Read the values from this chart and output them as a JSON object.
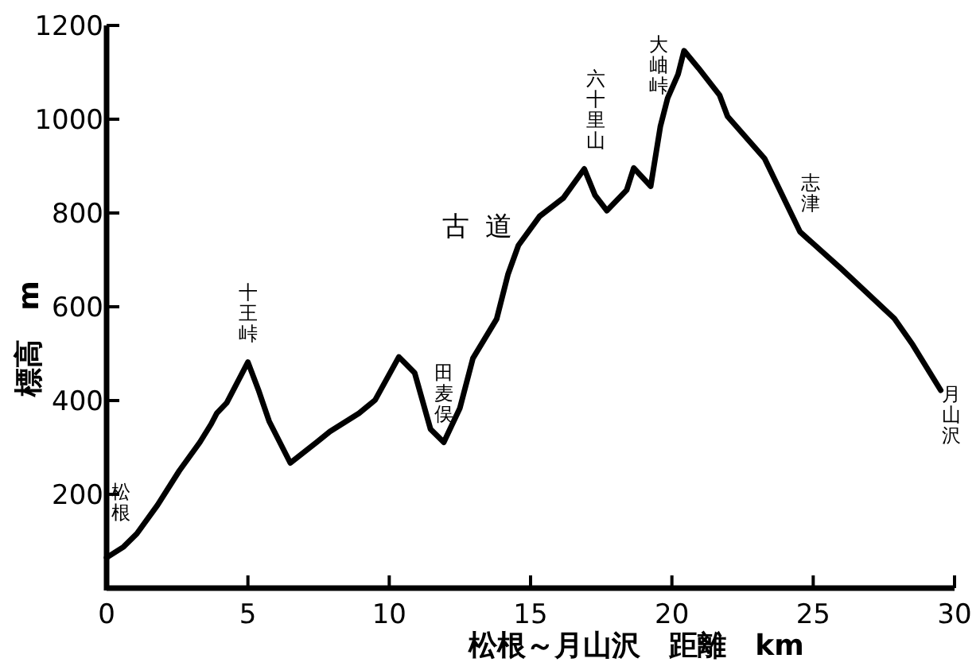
{
  "chart_data": {
    "type": "line",
    "xlabel": "松根～月山沢　距離　km",
    "ylabel": "標高　m",
    "xlim": [
      0,
      30
    ],
    "xticks": [
      0,
      5,
      10,
      15,
      20,
      25,
      30
    ],
    "ylim": [
      0,
      1200
    ],
    "yticks": [
      200,
      400,
      600,
      800,
      1000,
      1200
    ],
    "grid": false,
    "marker": "none",
    "line_style": "solid",
    "series": [
      {
        "color": "#000000",
        "x": [
          0,
          0.6,
          1.07,
          1.8,
          2.57,
          3.3,
          3.7,
          3.9,
          4.25,
          5.0,
          5.37,
          5.75,
          6.5,
          7.43,
          7.9,
          8.93,
          9.5,
          10.34,
          10.9,
          11.46,
          11.93,
          12.5,
          12.96,
          13.8,
          14.2,
          14.57,
          15.32,
          16.16,
          16.9,
          17.28,
          17.7,
          18.4,
          18.65,
          19.25,
          19.59,
          19.85,
          20.22,
          20.43,
          20.94,
          21.69,
          21.97,
          23.28,
          24.53,
          25.99,
          27.87,
          28.52,
          29.51
        ],
        "values": [
          65,
          88,
          116,
          177,
          250,
          311,
          350,
          373,
          395,
          482,
          423,
          356,
          267,
          311,
          334,
          373,
          401,
          493,
          459,
          339,
          311,
          384,
          490,
          574,
          669,
          731,
          793,
          832,
          894,
          838,
          805,
          849,
          896,
          857,
          984,
          1045,
          1096,
          1146,
          1109,
          1051,
          1006,
          916,
          760,
          681,
          575,
          519,
          422
        ]
      }
    ],
    "annotations": [
      {
        "text": "松根",
        "x": 0.5,
        "y": 100
      },
      {
        "text": "十王峠",
        "x": 5.0,
        "y": 482
      },
      {
        "text": "田麦俣",
        "x": 11.93,
        "y": 311
      },
      "古道",
      {
        "text": "六十里山",
        "x": 17.3,
        "y": 894
      },
      "大岫峠",
      {
        "text": "志津",
        "x": 24.9,
        "y": 760
      },
      "月山沢"
    ]
  }
}
